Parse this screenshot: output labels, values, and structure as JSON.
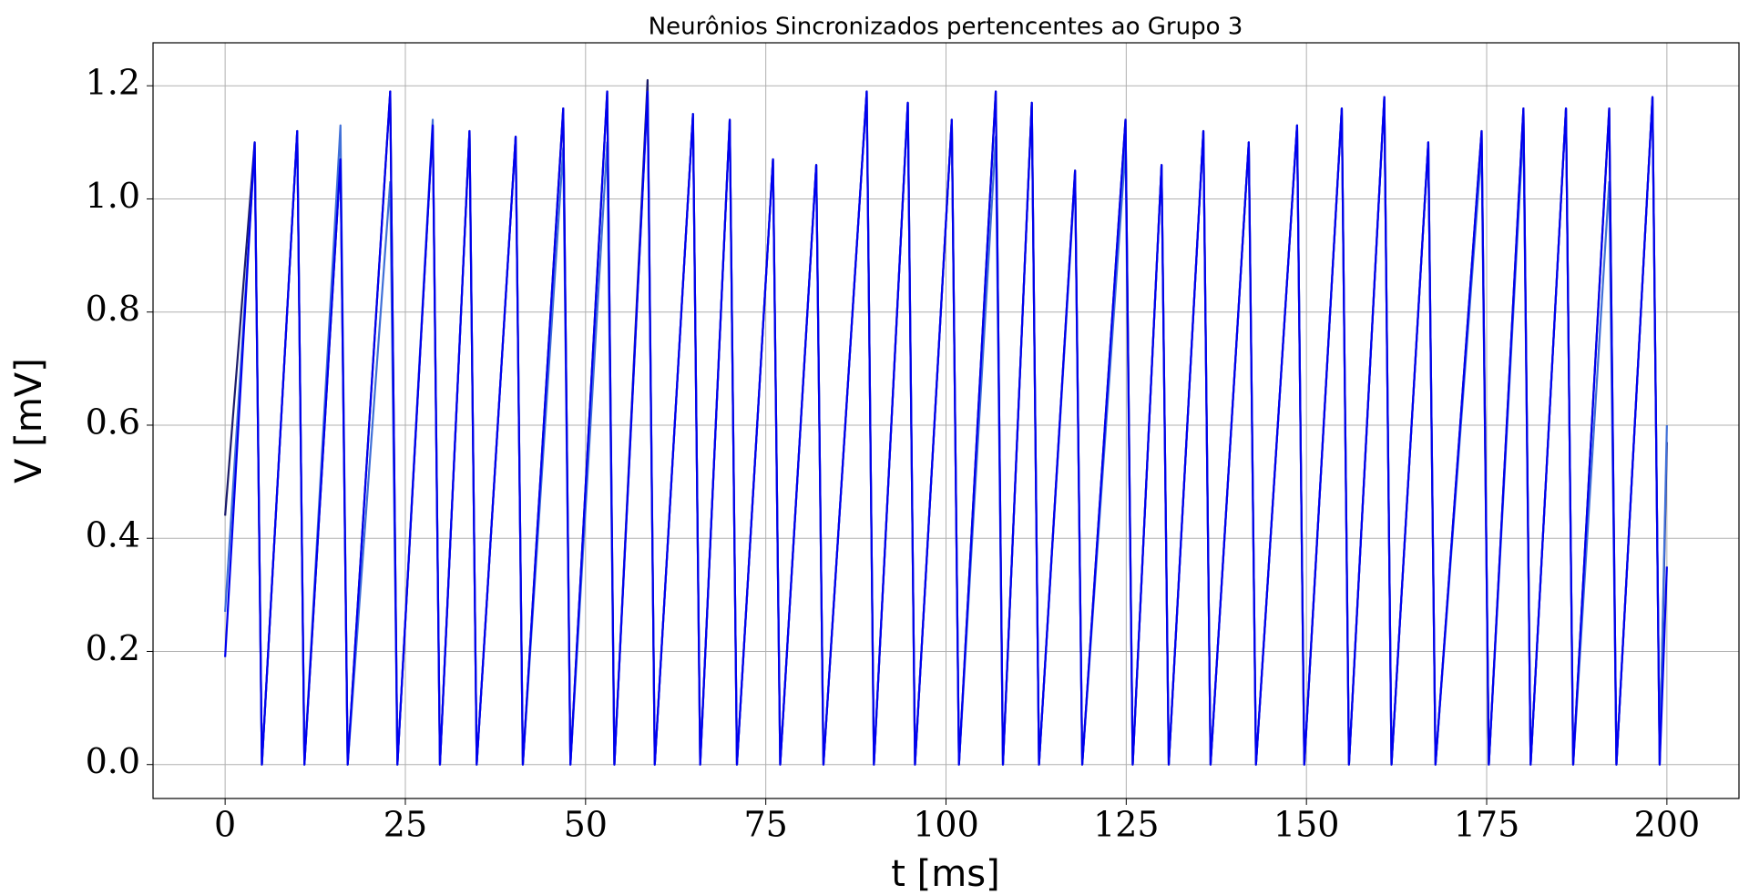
{
  "chart_data": {
    "type": "line",
    "title": "Neurônios Sincronizados pertencentes ao Grupo 3",
    "xlabel": "t [ms]",
    "ylabel": "V [mV]",
    "x": [
      0,
      4.1,
      5.1,
      10.0,
      11.0,
      16.0,
      17.0,
      22.9,
      23.9,
      28.8,
      29.8,
      33.9,
      34.9,
      40.3,
      41.3,
      46.9,
      47.9,
      53.0,
      54.0,
      58.6,
      59.6,
      64.9,
      65.9,
      70.0,
      71.0,
      76.0,
      77.0,
      82.0,
      83.0,
      89.0,
      90.0,
      94.7,
      95.7,
      100.8,
      101.8,
      106.9,
      107.9,
      111.9,
      112.9,
      117.9,
      118.9,
      124.9,
      125.9,
      129.9,
      130.9,
      135.7,
      136.7,
      142.0,
      143.0,
      148.7,
      149.7,
      154.9,
      155.9,
      160.8,
      161.8,
      166.9,
      167.9,
      174.3,
      175.3,
      180.1,
      181.1,
      186.0,
      187.0,
      192.0,
      193.0,
      198.0,
      199.0,
      200.0
    ],
    "series": [
      {
        "color": "#1c1c6b",
        "values": [
          0.44,
          1.1,
          0,
          1.12,
          0,
          1.07,
          0,
          1.19,
          0,
          1.13,
          0,
          1.12,
          0,
          1.11,
          0,
          1.16,
          0,
          1.19,
          0,
          1.21,
          0,
          1.15,
          0,
          1.14,
          0,
          1.07,
          0,
          1.06,
          0,
          1.19,
          0,
          1.17,
          0,
          1.14,
          0,
          1.19,
          0,
          1.17,
          0,
          1.05,
          0,
          1.14,
          0,
          1.06,
          0,
          1.12,
          0,
          1.1,
          0,
          1.13,
          0,
          1.16,
          0,
          1.18,
          0,
          1.1,
          0,
          1.12,
          0,
          1.16,
          0,
          1.16,
          0,
          1.16,
          0,
          1.18,
          0,
          0.57
        ]
      },
      {
        "color": "#4070d8",
        "values": [
          0.27,
          1.09,
          0,
          1.12,
          0,
          1.13,
          0,
          1.03,
          0,
          1.14,
          0,
          1.12,
          0,
          1.11,
          0,
          1.09,
          0,
          1.1,
          0,
          1.19,
          0,
          1.15,
          0,
          1.14,
          0,
          1.07,
          0,
          1.06,
          0,
          1.19,
          0,
          1.17,
          0,
          1.14,
          0,
          1.11,
          0,
          1.17,
          0,
          1.04,
          0,
          1.09,
          0,
          1.06,
          0,
          1.12,
          0,
          1.1,
          0,
          1.13,
          0,
          1.16,
          0,
          1.18,
          0,
          1.1,
          0,
          1.09,
          0,
          1.13,
          0,
          1.16,
          0,
          1.03,
          0,
          1.18,
          0,
          0.6
        ]
      },
      {
        "color": "#0000ee",
        "values": [
          0.19,
          1.1,
          0,
          1.12,
          0,
          1.07,
          0,
          1.19,
          0,
          1.13,
          0,
          1.12,
          0,
          1.11,
          0,
          1.16,
          0,
          1.19,
          0,
          1.19,
          0,
          1.15,
          0,
          1.14,
          0,
          1.07,
          0,
          1.06,
          0,
          1.19,
          0,
          1.17,
          0,
          1.14,
          0,
          1.19,
          0,
          1.17,
          0,
          1.05,
          0,
          1.14,
          0,
          1.06,
          0,
          1.12,
          0,
          1.1,
          0,
          1.13,
          0,
          1.16,
          0,
          1.18,
          0,
          1.1,
          0,
          1.12,
          0,
          1.16,
          0,
          1.16,
          0,
          1.16,
          0,
          1.18,
          0,
          0.35
        ]
      }
    ],
    "xlim": [
      -10,
      210
    ],
    "ylim": [
      -0.06,
      1.276
    ],
    "xticks": [
      0,
      25,
      50,
      75,
      100,
      125,
      150,
      175,
      200
    ],
    "yticks": [
      {
        "value": 0,
        "label": "0.0"
      },
      0.2,
      0.4,
      0.6,
      0.8,
      {
        "value": 1,
        "label": "1.0"
      },
      1.2
    ],
    "grid": true
  }
}
